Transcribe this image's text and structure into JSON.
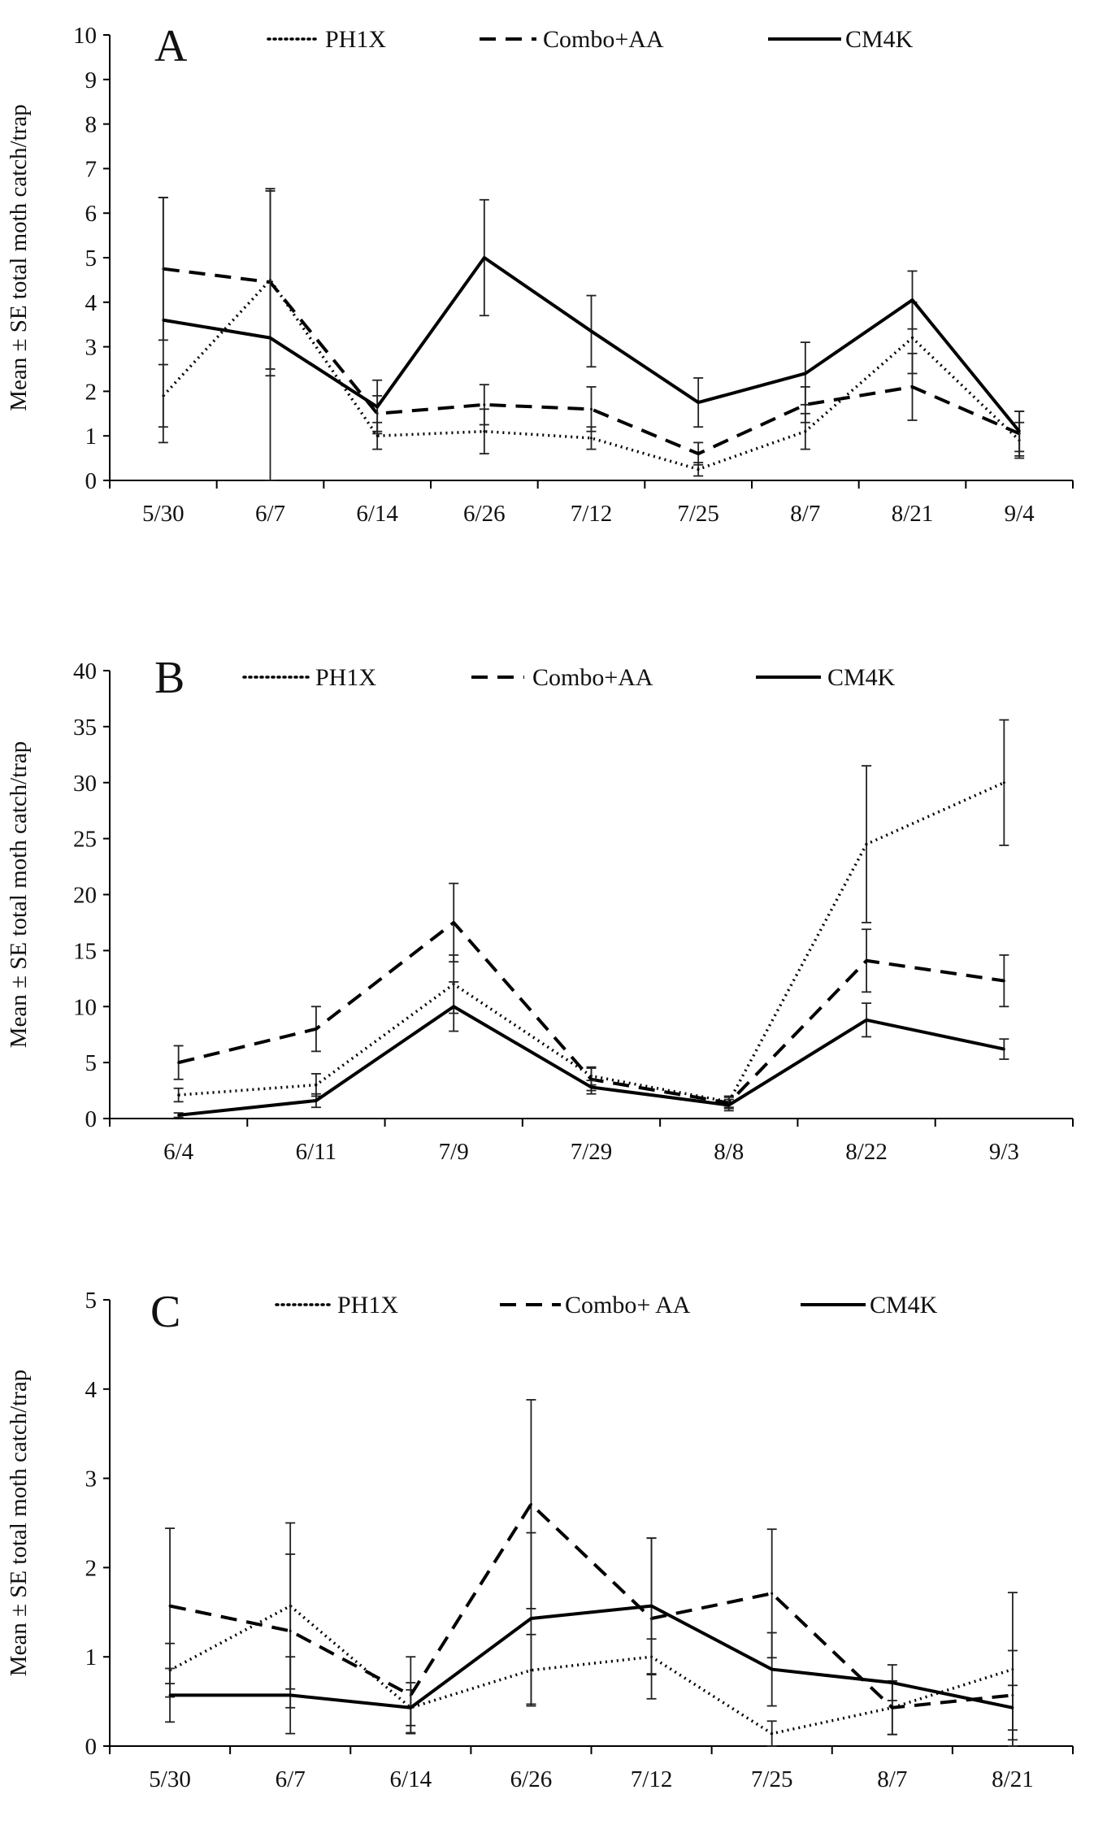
{
  "chart_data": [
    {
      "type": "line",
      "panel_label": "A",
      "ylabel": "Mean ± SE total moth catch/trap",
      "categories": [
        "5/30",
        "6/7",
        "6/14",
        "6/26",
        "7/12",
        "7/25",
        "8/7",
        "8/21",
        "9/4"
      ],
      "ylim": [
        0,
        10
      ],
      "yticks": [
        "0",
        "1",
        "2",
        "3",
        "4",
        "5",
        "6",
        "7",
        "8",
        "9",
        "10"
      ],
      "legend_position": "top",
      "series": [
        {
          "name": "PH1X",
          "style": "dotted",
          "values": [
            1.9,
            4.5,
            1.0,
            1.1,
            0.95,
            0.25,
            1.1,
            3.2,
            0.9
          ],
          "errors": [
            0.7,
            2.0,
            0.3,
            0.5,
            0.25,
            0.15,
            0.4,
            0.8,
            0.4
          ]
        },
        {
          "name": "Combo+AA",
          "style": "dashed",
          "values": [
            4.75,
            4.45,
            1.5,
            1.7,
            1.6,
            0.6,
            1.7,
            2.1,
            1.05
          ],
          "errors": [
            1.6,
            2.1,
            0.4,
            0.45,
            0.5,
            0.25,
            0.4,
            0.75,
            0.5
          ]
        },
        {
          "name": "CM4K",
          "style": "solid",
          "values": [
            3.6,
            3.2,
            1.65,
            5.0,
            3.35,
            1.75,
            2.4,
            4.05,
            1.1
          ],
          "errors": [
            2.75,
            3.3,
            0.6,
            1.3,
            0.8,
            0.55,
            0.7,
            0.65,
            0.45
          ]
        }
      ]
    },
    {
      "type": "line",
      "panel_label": "B",
      "ylabel": "Mean ± SE total moth catch/trap",
      "categories": [
        "6/4",
        "6/11",
        "7/9",
        "7/29",
        "8/8",
        "8/22",
        "9/3"
      ],
      "ylim": [
        0,
        40
      ],
      "yticks": [
        "0",
        "5",
        "10",
        "15",
        "20",
        "25",
        "30",
        "35",
        "40"
      ],
      "legend_position": "top",
      "series": [
        {
          "name": "PH1X",
          "style": "dotted",
          "values": [
            2.1,
            3.0,
            12.0,
            3.8,
            1.5,
            24.5,
            30.0
          ],
          "errors": [
            0.6,
            1.0,
            2.6,
            0.8,
            0.5,
            7.0,
            5.6
          ]
        },
        {
          "name": "Combo+AA",
          "style": "dashed",
          "values": [
            5.0,
            8.0,
            17.5,
            3.5,
            1.4,
            14.1,
            12.3
          ],
          "errors": [
            1.5,
            2.0,
            3.5,
            1.0,
            0.5,
            2.8,
            2.3
          ]
        },
        {
          "name": "CM4K",
          "style": "solid",
          "values": [
            0.3,
            1.6,
            10.0,
            2.8,
            1.2,
            8.8,
            6.2
          ],
          "errors": [
            0.2,
            0.6,
            2.2,
            0.6,
            0.5,
            1.5,
            0.9
          ]
        }
      ]
    },
    {
      "type": "line",
      "panel_label": "C",
      "ylabel": "Mean ± SE total moth catch/trap",
      "categories": [
        "5/30",
        "6/7",
        "6/14",
        "6/26",
        "7/12",
        "7/25",
        "8/7",
        "8/21"
      ],
      "ylim": [
        0,
        5
      ],
      "yticks": [
        "0",
        "1",
        "2",
        "3",
        "4",
        "5"
      ],
      "legend_position": "top",
      "series": [
        {
          "name": "PH1X",
          "style": "dotted",
          "values": [
            0.85,
            1.57,
            0.43,
            0.85,
            1.0,
            0.14,
            0.43,
            0.86
          ],
          "errors": [
            0.3,
            0.93,
            0.2,
            0.4,
            0.2,
            0.14,
            0.3,
            0.86
          ]
        },
        {
          "name": "Combo+ AA",
          "style": "dashed",
          "values": [
            1.57,
            1.29,
            0.57,
            2.71,
            1.43,
            1.71,
            0.43,
            0.57
          ],
          "errors": [
            0.87,
            0.86,
            0.43,
            1.17,
            0.9,
            0.72,
            0.3,
            0.5
          ]
        },
        {
          "name": "CM4K",
          "style": "solid",
          "values": [
            0.57,
            0.57,
            0.43,
            1.43,
            1.57,
            0.86,
            0.71,
            0.43
          ],
          "errors": [
            0.3,
            0.43,
            0.28,
            0.96,
            0.76,
            0.41,
            0.2,
            0.25
          ]
        }
      ]
    }
  ]
}
